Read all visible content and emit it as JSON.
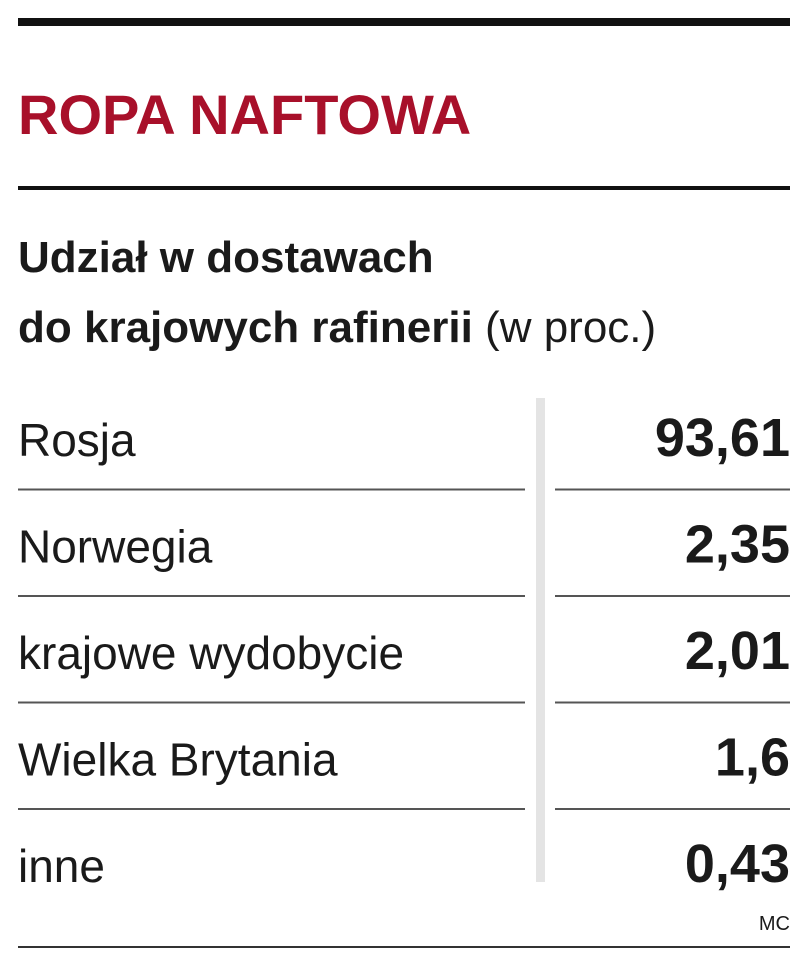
{
  "header": {
    "title": "ROPA NAFTOWA",
    "subtitle_lines": [
      "Udział w dostawach",
      "do krajowych rafinerii"
    ],
    "unit": "(w proc.)"
  },
  "table": {
    "rows": [
      [
        "Rosja",
        "93,61"
      ],
      [
        "Norwegia",
        "2,35"
      ],
      [
        "krajowe wydobycie",
        "2,01"
      ],
      [
        "Wielka Brytania",
        "1,6"
      ],
      [
        "inne",
        "0,43"
      ]
    ]
  },
  "footer": {
    "credit": "MC"
  }
}
